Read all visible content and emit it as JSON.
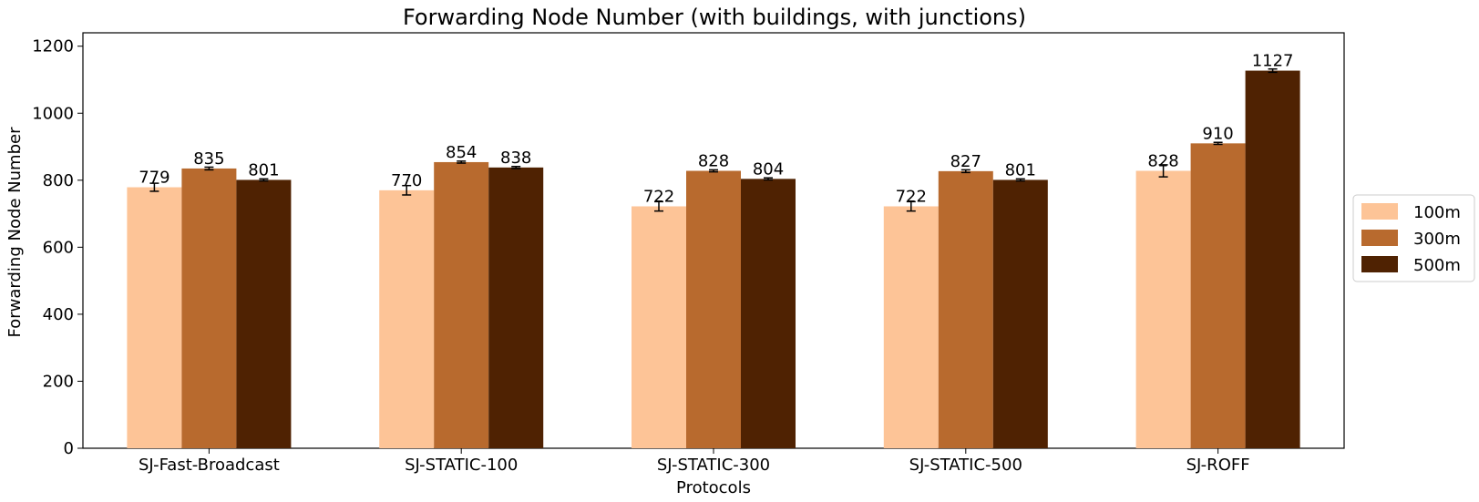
{
  "chart_data": {
    "type": "bar",
    "title": "Forwarding Node Number (with buildings, with junctions)",
    "xlabel": "Protocols",
    "ylabel": "Forwarding Node Number",
    "ylim": [
      0,
      1240
    ],
    "yticks": [
      "0",
      "200",
      "400",
      "600",
      "800",
      "1000",
      "1200"
    ],
    "grid": false,
    "legend_position": "right",
    "categories": [
      "SJ-Fast-Broadcast",
      "SJ-STATIC-100",
      "SJ-STATIC-300",
      "SJ-STATIC-500",
      "SJ-ROFF"
    ],
    "series": [
      {
        "name": "100m",
        "color": "#fdc497",
        "values": [
          779,
          770,
          722,
          722,
          828
        ],
        "errors": [
          12,
          14,
          14,
          14,
          18
        ]
      },
      {
        "name": "300m",
        "color": "#b86a2e",
        "values": [
          835,
          854,
          828,
          827,
          910
        ],
        "errors": [
          4,
          3,
          3,
          4,
          3
        ]
      },
      {
        "name": "500m",
        "color": "#4f2202",
        "values": [
          801,
          838,
          804,
          801,
          1127
        ],
        "errors": [
          3,
          3,
          3,
          3,
          5
        ]
      }
    ]
  }
}
